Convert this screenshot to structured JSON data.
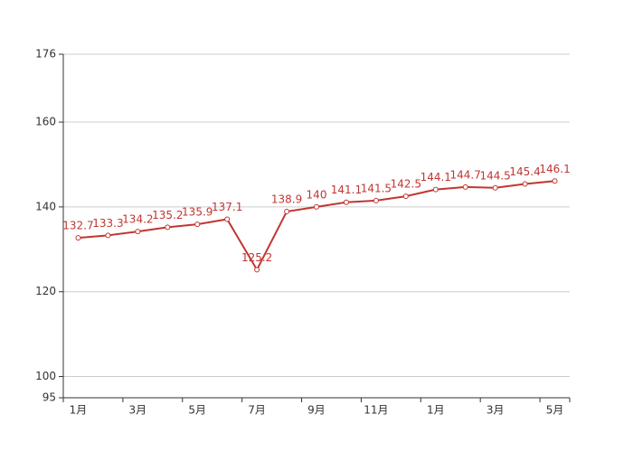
{
  "chart_data": {
    "type": "line",
    "categories": [
      "1月",
      null,
      "3月",
      null,
      "5月",
      null,
      "7月",
      null,
      "9月",
      null,
      "11月",
      null,
      "1月",
      null,
      "3月",
      null,
      "5月"
    ],
    "values": [
      132.7,
      133.3,
      134.2,
      135.2,
      135.9,
      137.1,
      125.2,
      138.9,
      140,
      141.1,
      141.5,
      142.5,
      144.1,
      144.7,
      144.5,
      145.4,
      146.1
    ],
    "color": "#c23531",
    "ylim": [
      95,
      176
    ],
    "yticks": [
      95,
      100,
      120,
      140,
      160,
      176
    ],
    "grid": true
  }
}
